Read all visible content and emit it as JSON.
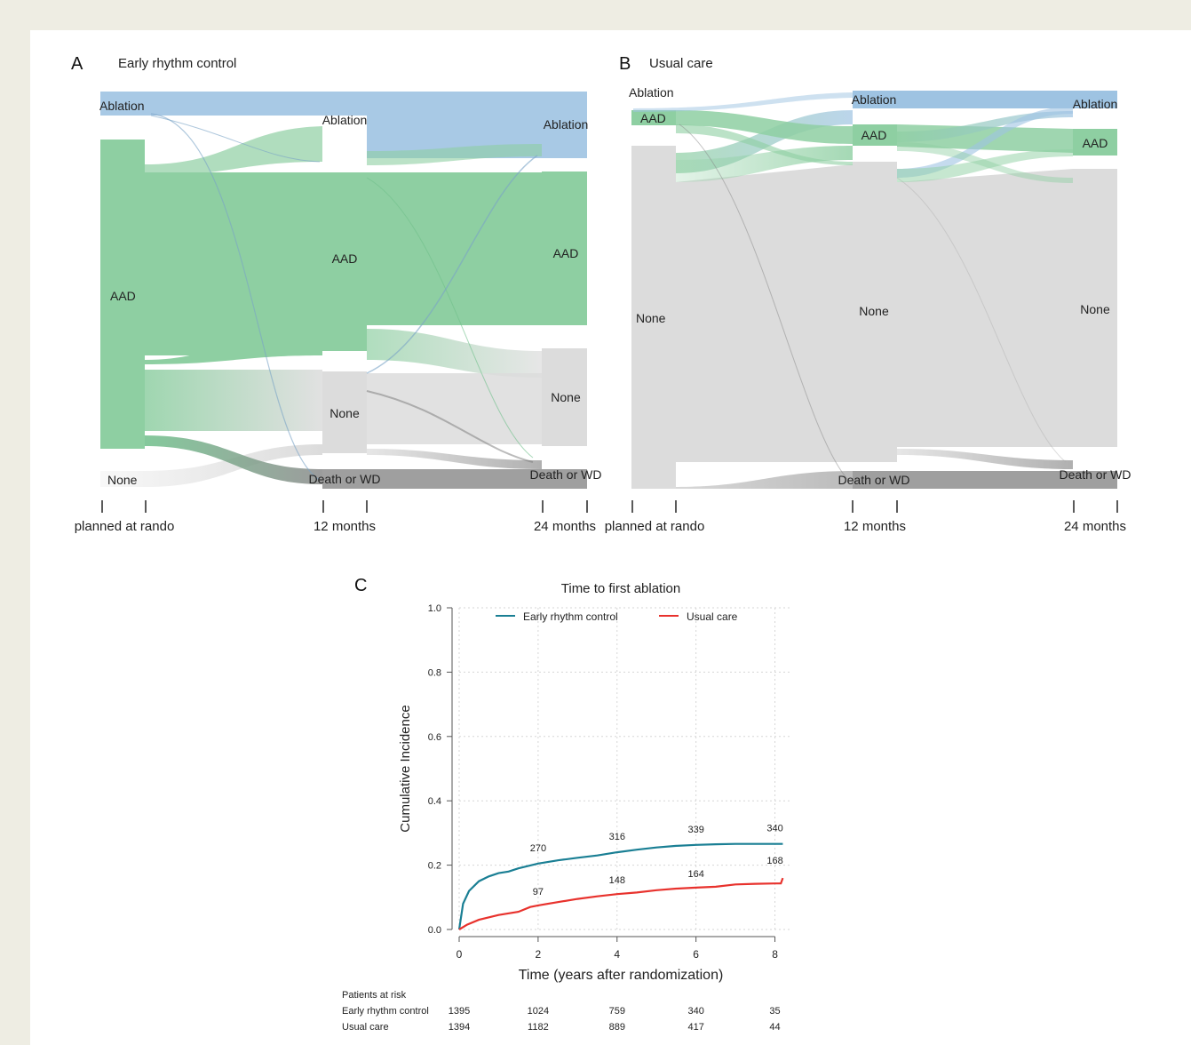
{
  "chart_data": [
    {
      "type": "sankey",
      "panel": "A",
      "title": "Early rhythm control",
      "time_points": [
        "planned at rando",
        "12 months",
        "24 months"
      ],
      "nodes": [
        [
          "Ablation",
          "AAD",
          "None"
        ],
        [
          "Ablation",
          "AAD",
          "None",
          "Death or WD"
        ],
        [
          "Ablation",
          "AAD",
          "None",
          "Death or WD"
        ]
      ]
    },
    {
      "type": "sankey",
      "panel": "B",
      "title": "Usual care",
      "time_points": [
        "planned at rando",
        "12 months",
        "24 months"
      ],
      "nodes": [
        [
          "Ablation",
          "AAD",
          "None"
        ],
        [
          "Ablation",
          "AAD",
          "None",
          "Death or WD"
        ],
        [
          "Ablation",
          "AAD",
          "None",
          "Death or WD"
        ]
      ]
    },
    {
      "type": "line",
      "panel": "C",
      "title": "Time to first ablation",
      "xlabel": "Time (years after randomization)",
      "ylabel": "Cumulative Incidence",
      "xlim": [
        0,
        8.2
      ],
      "ylim": [
        0,
        1
      ],
      "xticks": [
        0,
        2,
        4,
        6,
        8
      ],
      "yticks": [
        "0.0",
        "0.2",
        "0.4",
        "0.6",
        "0.8",
        "1.0"
      ],
      "grid": true,
      "legend_position": "top",
      "series": [
        {
          "name": "Early rhythm control",
          "color": "#1a7f94",
          "x": [
            0,
            0.1,
            0.25,
            0.5,
            0.75,
            1,
            1.25,
            1.5,
            2,
            2.5,
            3,
            3.5,
            4,
            4.5,
            5,
            5.5,
            6,
            6.5,
            7,
            7.5,
            8,
            8.2
          ],
          "y": [
            0,
            0.08,
            0.12,
            0.15,
            0.165,
            0.175,
            0.18,
            0.19,
            0.205,
            0.215,
            0.223,
            0.23,
            0.24,
            0.248,
            0.255,
            0.26,
            0.263,
            0.265,
            0.266,
            0.266,
            0.266,
            0.266
          ],
          "labels": [
            {
              "x": 2,
              "value": "270"
            },
            {
              "x": 4,
              "value": "316"
            },
            {
              "x": 6,
              "value": "339"
            },
            {
              "x": 8,
              "value": "340"
            }
          ]
        },
        {
          "name": "Usual care",
          "color": "#e8322d",
          "x": [
            0,
            0.2,
            0.5,
            1,
            1.5,
            1.8,
            2,
            2.5,
            3,
            3.5,
            4,
            4.5,
            5,
            5.5,
            6,
            6.5,
            7,
            7.5,
            8,
            8.15,
            8.2
          ],
          "y": [
            0,
            0.015,
            0.03,
            0.045,
            0.055,
            0.07,
            0.075,
            0.085,
            0.095,
            0.103,
            0.11,
            0.115,
            0.122,
            0.127,
            0.13,
            0.133,
            0.14,
            0.142,
            0.143,
            0.143,
            0.16
          ],
          "labels": [
            {
              "x": 2,
              "value": "97"
            },
            {
              "x": 4,
              "value": "148"
            },
            {
              "x": 6,
              "value": "164"
            },
            {
              "x": 8,
              "value": "168"
            }
          ]
        }
      ]
    }
  ],
  "risk_table": {
    "title": "Patients at risk",
    "times": [
      0,
      2,
      4,
      6,
      8
    ],
    "rows": [
      {
        "name": "Early rhythm control",
        "values": [
          "1395",
          "1024",
          "759",
          "340",
          "35"
        ]
      },
      {
        "name": "Usual care",
        "values": [
          "1394",
          "1182",
          "889",
          "417",
          "44"
        ]
      }
    ]
  }
}
